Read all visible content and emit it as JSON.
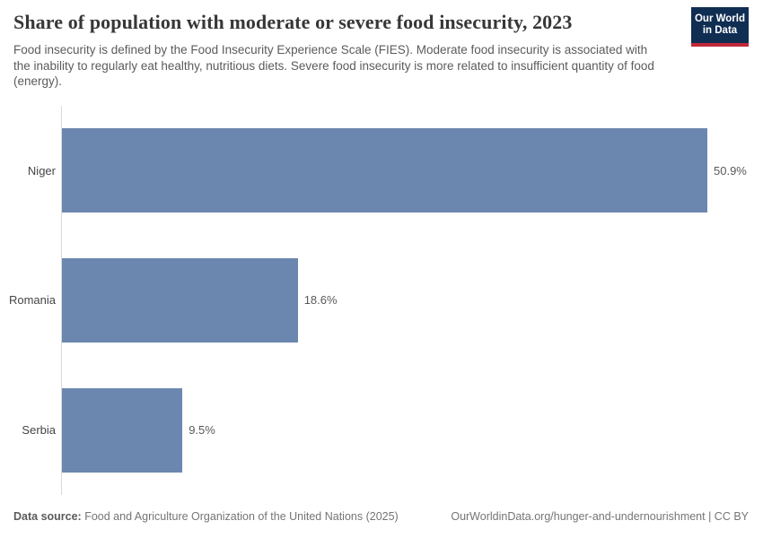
{
  "header": {
    "title": "Share of population with moderate or severe food insecurity, 2023",
    "subtitle": "Food insecurity is defined by the Food Insecurity Experience Scale (FIES). Moderate food insecurity is associated with the inability to regularly eat healthy, nutritious diets. Severe food insecurity is more related to insufficient quantity of food (energy).",
    "logo": {
      "line1": "Our World",
      "line2": "in Data",
      "bg_color": "#102d52",
      "accent_color": "#c0293a"
    }
  },
  "chart_data": {
    "type": "bar",
    "orientation": "horizontal",
    "title": "Share of population with moderate or severe food insecurity, 2023",
    "categories": [
      "Niger",
      "Romania",
      "Serbia"
    ],
    "values": [
      50.9,
      18.6,
      9.5
    ],
    "value_labels": [
      "50.9%",
      "18.6%",
      "9.5%"
    ],
    "unit": "%",
    "xlim": [
      0,
      50.9
    ],
    "bar_color": "#6c87af",
    "axis_line_color": "#d9d9d9",
    "grid": false,
    "legend": "none"
  },
  "footer": {
    "source_label": "Data source:",
    "source_text": " Food and Agriculture Organization of the United Nations (2025)",
    "link_text": "OurWorldinData.org/hunger-and-undernourishment | CC BY"
  }
}
